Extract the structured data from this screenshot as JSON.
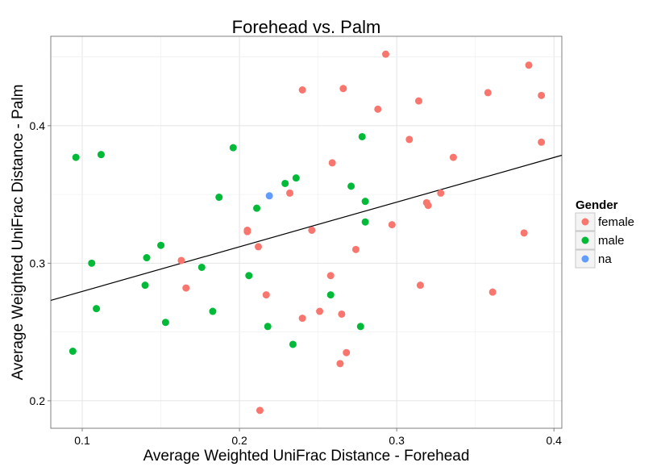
{
  "chart_data": {
    "type": "scatter",
    "title": "Forehead vs. Palm",
    "xlabel": "Average Weighted UniFrac Distance - Forehead",
    "ylabel": "Average Weighted UniFrac Distance - Palm",
    "xlim": [
      0.08,
      0.405
    ],
    "ylim": [
      0.18,
      0.465
    ],
    "x_ticks": [
      "0.1",
      "0.2",
      "0.3",
      "0.4"
    ],
    "y_ticks": [
      "0.2",
      "0.3",
      "0.4"
    ],
    "grid": true,
    "legend": {
      "title": "Gender",
      "position": "right",
      "entries": [
        {
          "label": "female",
          "color": "#F8766D"
        },
        {
          "label": "male",
          "color": "#00BA38"
        },
        {
          "label": "na",
          "color": "#619CFF"
        }
      ]
    },
    "trendline": {
      "x": [
        0.08,
        0.405
      ],
      "y": [
        0.273,
        0.3785
      ]
    },
    "series": [
      {
        "name": "female",
        "color": "#F8766D",
        "points": [
          {
            "x": 0.293,
            "y": 0.452
          },
          {
            "x": 0.384,
            "y": 0.444
          },
          {
            "x": 0.24,
            "y": 0.426
          },
          {
            "x": 0.266,
            "y": 0.427
          },
          {
            "x": 0.358,
            "y": 0.424
          },
          {
            "x": 0.392,
            "y": 0.422
          },
          {
            "x": 0.314,
            "y": 0.418
          },
          {
            "x": 0.288,
            "y": 0.412
          },
          {
            "x": 0.308,
            "y": 0.39
          },
          {
            "x": 0.392,
            "y": 0.388
          },
          {
            "x": 0.336,
            "y": 0.377
          },
          {
            "x": 0.259,
            "y": 0.373
          },
          {
            "x": 0.232,
            "y": 0.351
          },
          {
            "x": 0.328,
            "y": 0.351
          },
          {
            "x": 0.319,
            "y": 0.344
          },
          {
            "x": 0.32,
            "y": 0.342
          },
          {
            "x": 0.297,
            "y": 0.328
          },
          {
            "x": 0.246,
            "y": 0.324
          },
          {
            "x": 0.205,
            "y": 0.324
          },
          {
            "x": 0.205,
            "y": 0.323
          },
          {
            "x": 0.381,
            "y": 0.322
          },
          {
            "x": 0.212,
            "y": 0.312
          },
          {
            "x": 0.274,
            "y": 0.31
          },
          {
            "x": 0.163,
            "y": 0.302
          },
          {
            "x": 0.258,
            "y": 0.291
          },
          {
            "x": 0.315,
            "y": 0.284
          },
          {
            "x": 0.166,
            "y": 0.282
          },
          {
            "x": 0.361,
            "y": 0.279
          },
          {
            "x": 0.217,
            "y": 0.277
          },
          {
            "x": 0.251,
            "y": 0.265
          },
          {
            "x": 0.265,
            "y": 0.263
          },
          {
            "x": 0.24,
            "y": 0.26
          },
          {
            "x": 0.268,
            "y": 0.235
          },
          {
            "x": 0.264,
            "y": 0.227
          },
          {
            "x": 0.213,
            "y": 0.193
          }
        ]
      },
      {
        "name": "male",
        "color": "#00BA38",
        "points": [
          {
            "x": 0.096,
            "y": 0.377
          },
          {
            "x": 0.112,
            "y": 0.379
          },
          {
            "x": 0.196,
            "y": 0.384
          },
          {
            "x": 0.278,
            "y": 0.392
          },
          {
            "x": 0.236,
            "y": 0.362
          },
          {
            "x": 0.229,
            "y": 0.358
          },
          {
            "x": 0.271,
            "y": 0.356
          },
          {
            "x": 0.187,
            "y": 0.348
          },
          {
            "x": 0.28,
            "y": 0.345
          },
          {
            "x": 0.211,
            "y": 0.34
          },
          {
            "x": 0.28,
            "y": 0.33
          },
          {
            "x": 0.15,
            "y": 0.313
          },
          {
            "x": 0.141,
            "y": 0.304
          },
          {
            "x": 0.106,
            "y": 0.3
          },
          {
            "x": 0.176,
            "y": 0.297
          },
          {
            "x": 0.206,
            "y": 0.291
          },
          {
            "x": 0.14,
            "y": 0.284
          },
          {
            "x": 0.258,
            "y": 0.277
          },
          {
            "x": 0.109,
            "y": 0.267
          },
          {
            "x": 0.183,
            "y": 0.265
          },
          {
            "x": 0.153,
            "y": 0.257
          },
          {
            "x": 0.218,
            "y": 0.254
          },
          {
            "x": 0.277,
            "y": 0.254
          },
          {
            "x": 0.234,
            "y": 0.241
          },
          {
            "x": 0.094,
            "y": 0.236
          }
        ]
      },
      {
        "name": "na",
        "color": "#619CFF",
        "points": [
          {
            "x": 0.219,
            "y": 0.349
          }
        ]
      }
    ]
  }
}
